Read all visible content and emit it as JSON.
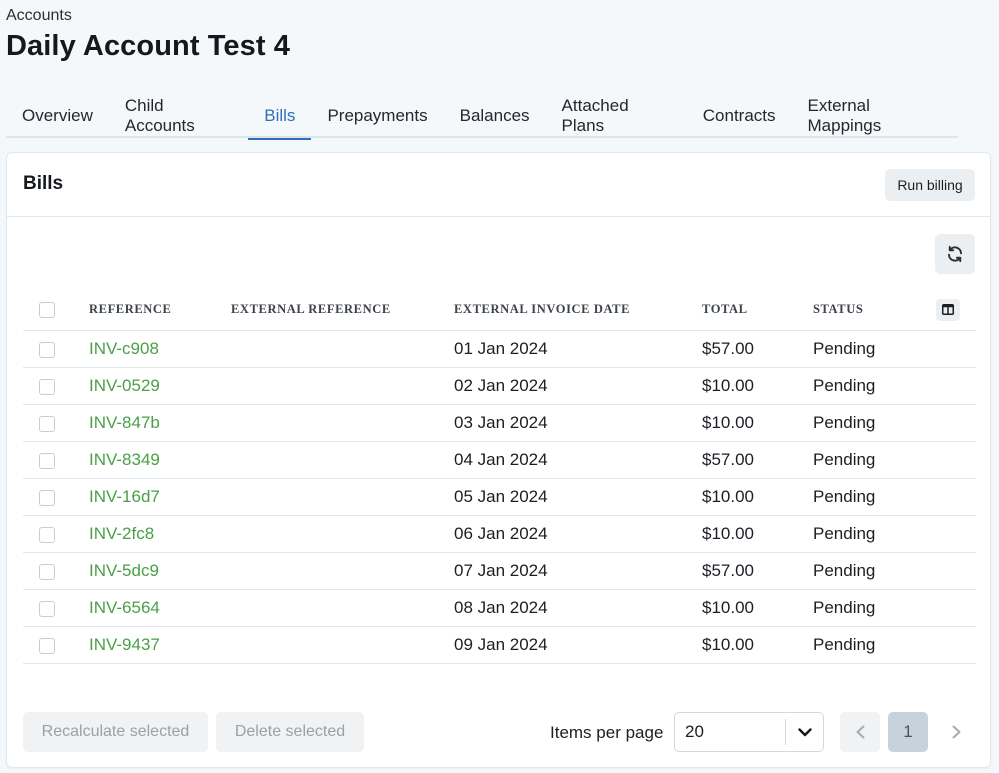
{
  "breadcrumb": "Accounts",
  "page_title": "Daily Account Test 4",
  "tabs": [
    {
      "label": "Overview",
      "active": false
    },
    {
      "label": "Child Accounts",
      "active": false
    },
    {
      "label": "Bills",
      "active": true
    },
    {
      "label": "Prepayments",
      "active": false
    },
    {
      "label": "Balances",
      "active": false
    },
    {
      "label": "Attached Plans",
      "active": false
    },
    {
      "label": "Contracts",
      "active": false
    },
    {
      "label": "External Mappings",
      "active": false
    }
  ],
  "card": {
    "title": "Bills",
    "run_billing_label": "Run billing",
    "refresh_icon": "refresh-icon",
    "columns_icon": "columns-icon"
  },
  "table": {
    "headers": {
      "reference": "REFERENCE",
      "external_reference": "EXTERNAL REFERENCE",
      "external_invoice_date": "EXTERNAL INVOICE DATE",
      "total": "TOTAL",
      "status": "STATUS"
    },
    "rows": [
      {
        "reference": "INV-c908",
        "external_reference": "",
        "date": "01 Jan 2024",
        "total": "$57.00",
        "status": "Pending"
      },
      {
        "reference": "INV-0529",
        "external_reference": "",
        "date": "02 Jan 2024",
        "total": "$10.00",
        "status": "Pending"
      },
      {
        "reference": "INV-847b",
        "external_reference": "",
        "date": "03 Jan 2024",
        "total": "$10.00",
        "status": "Pending"
      },
      {
        "reference": "INV-8349",
        "external_reference": "",
        "date": "04 Jan 2024",
        "total": "$57.00",
        "status": "Pending"
      },
      {
        "reference": "INV-16d7",
        "external_reference": "",
        "date": "05 Jan 2024",
        "total": "$10.00",
        "status": "Pending"
      },
      {
        "reference": "INV-2fc8",
        "external_reference": "",
        "date": "06 Jan 2024",
        "total": "$10.00",
        "status": "Pending"
      },
      {
        "reference": "INV-5dc9",
        "external_reference": "",
        "date": "07 Jan 2024",
        "total": "$57.00",
        "status": "Pending"
      },
      {
        "reference": "INV-6564",
        "external_reference": "",
        "date": "08 Jan 2024",
        "total": "$10.00",
        "status": "Pending"
      },
      {
        "reference": "INV-9437",
        "external_reference": "",
        "date": "09 Jan 2024",
        "total": "$10.00",
        "status": "Pending"
      }
    ]
  },
  "footer": {
    "recalculate_label": "Recalculate selected",
    "delete_label": "Delete selected",
    "items_per_page_label": "Items per page",
    "items_per_page_value": "20",
    "current_page": "1"
  },
  "colors": {
    "link": "#4aa048",
    "active_tab": "#2f6fb5",
    "background": "#f5f8fb"
  }
}
